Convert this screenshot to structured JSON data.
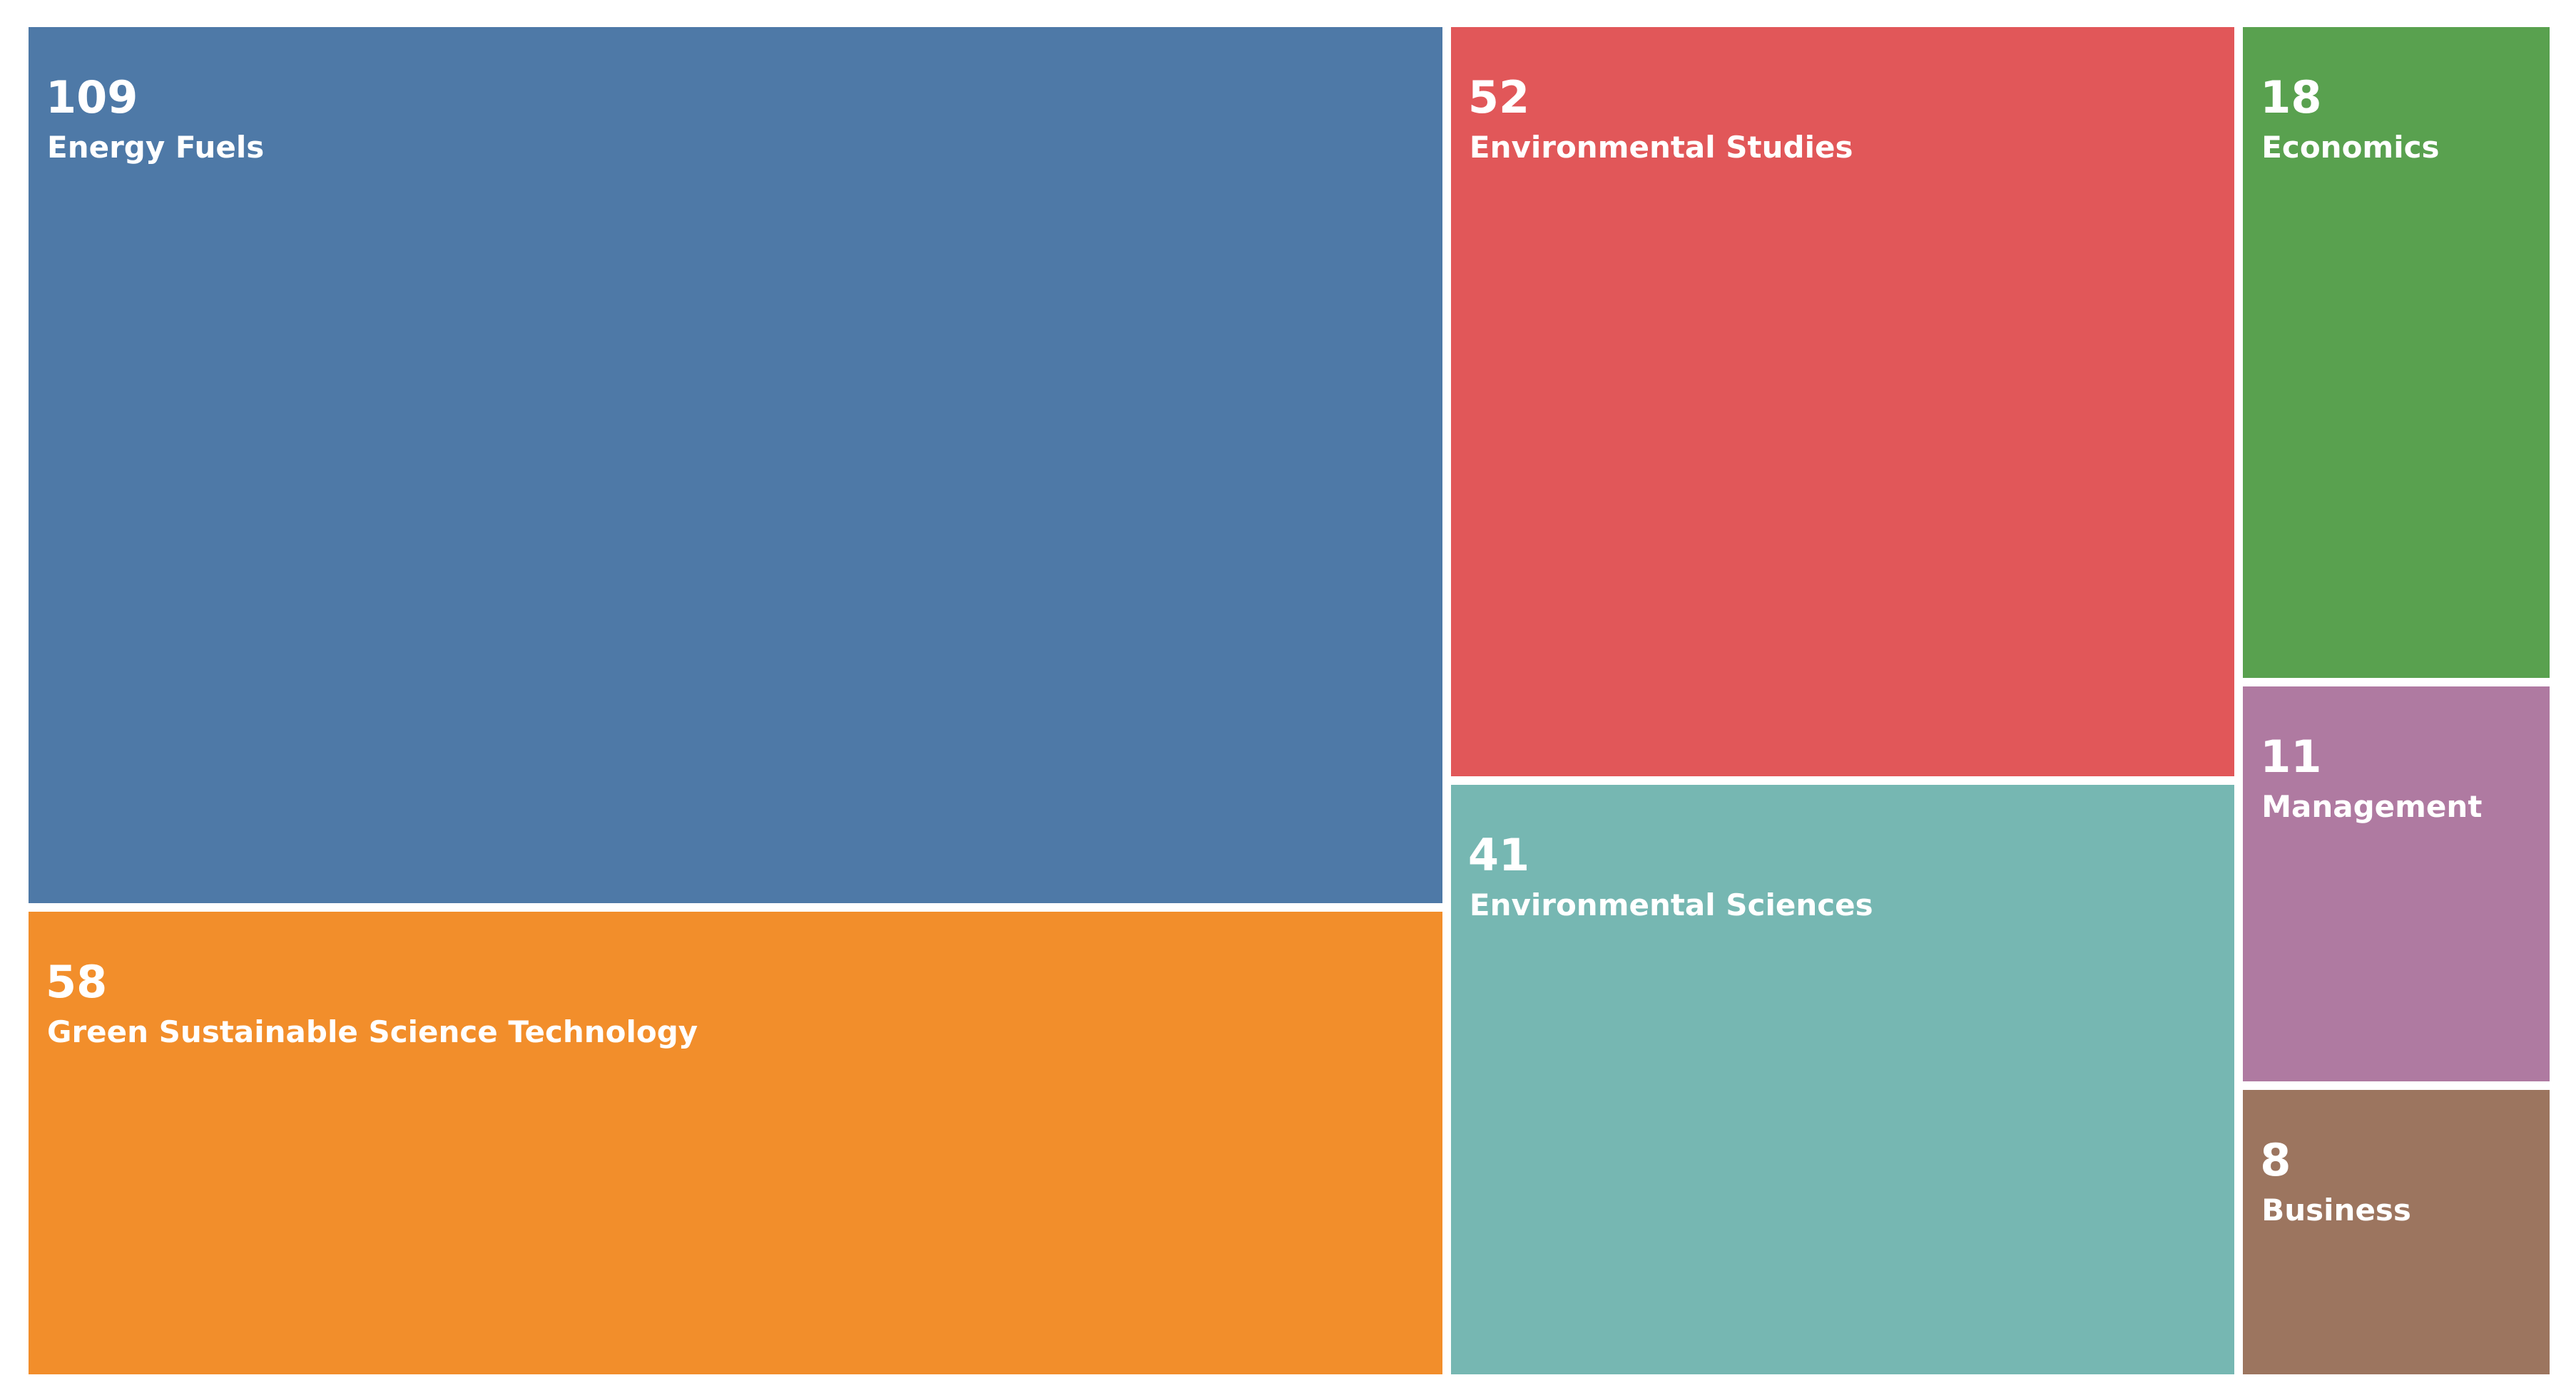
{
  "chart_data": {
    "type": "treemap",
    "title": "",
    "items": [
      {
        "label": "Energy Fuels",
        "value": 109,
        "color": "#4e79a7"
      },
      {
        "label": "Green Sustainable Science Technology",
        "value": 58,
        "color": "#f28e2b"
      },
      {
        "label": "Environmental Studies",
        "value": 52,
        "color": "#e15759"
      },
      {
        "label": "Environmental Sciences",
        "value": 41,
        "color": "#76b7b2"
      },
      {
        "label": "Economics",
        "value": 18,
        "color": "#59a14f"
      },
      {
        "label": "Management",
        "value": 11,
        "color": "#af7aa1"
      },
      {
        "label": "Business",
        "value": 8,
        "color": "#9c755f"
      }
    ]
  }
}
